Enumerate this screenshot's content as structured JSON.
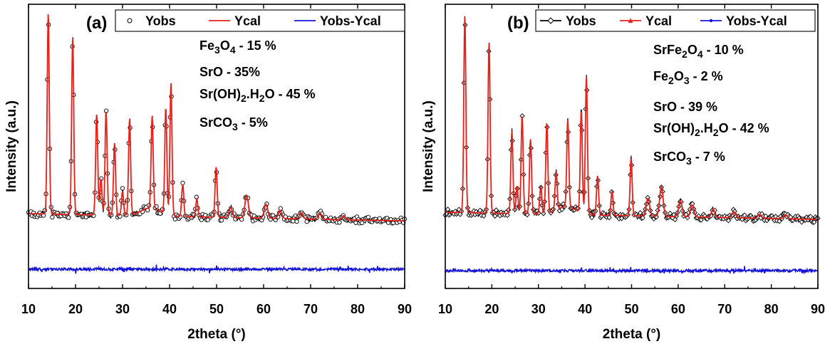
{
  "chart_data": [
    {
      "type": "line",
      "panel_label": "(a)",
      "xlabel": "2theta (°)",
      "ylabel": "Intensity (a.u.)",
      "xlim": [
        10,
        90
      ],
      "xticks": [
        "10",
        "20",
        "30",
        "40",
        "50",
        "60",
        "70",
        "80",
        "90"
      ],
      "legend": {
        "placement": "top-right",
        "entries": [
          {
            "label": "Yobs",
            "color": "#000000",
            "marker": "open-circle"
          },
          {
            "label": "Ycal",
            "color": "#e8201a",
            "marker": "none"
          },
          {
            "label": "Yobs-Ycal",
            "color": "#1414d8",
            "marker": "none"
          }
        ]
      },
      "annotations": [
        {
          "formula": [
            [
              "Fe",
              ""
            ],
            [
              "3",
              "sub"
            ],
            [
              "O",
              ""
            ],
            [
              "4",
              "sub"
            ],
            [
              " - 15 %",
              ""
            ]
          ]
        },
        {
          "formula": [
            [
              "SrO - 35%",
              ""
            ]
          ]
        },
        {
          "formula": [
            [
              "Sr(OH)",
              ""
            ],
            [
              "2",
              "sub"
            ],
            [
              ".H",
              ""
            ],
            [
              "2",
              "sub"
            ],
            [
              "O - 45 %",
              ""
            ]
          ]
        },
        {
          "formula": [
            [
              "SrCO",
              ""
            ],
            [
              "3",
              "sub"
            ],
            [
              " - 5%",
              ""
            ]
          ]
        }
      ],
      "peaks": [
        {
          "x": 14.2,
          "h": 100
        },
        {
          "x": 19.4,
          "h": 88
        },
        {
          "x": 24.5,
          "h": 50
        },
        {
          "x": 25.4,
          "h": 18
        },
        {
          "x": 26.5,
          "h": 52
        },
        {
          "x": 28.3,
          "h": 36
        },
        {
          "x": 30.0,
          "h": 12
        },
        {
          "x": 31.5,
          "h": 48
        },
        {
          "x": 36.3,
          "h": 46
        },
        {
          "x": 39.2,
          "h": 53
        },
        {
          "x": 40.3,
          "h": 66
        },
        {
          "x": 42.8,
          "h": 16
        },
        {
          "x": 45.8,
          "h": 9
        },
        {
          "x": 49.9,
          "h": 25
        },
        {
          "x": 53.0,
          "h": 5
        },
        {
          "x": 56.4,
          "h": 11
        },
        {
          "x": 60.5,
          "h": 7
        },
        {
          "x": 63.5,
          "h": 4
        },
        {
          "x": 68.0,
          "h": 3
        },
        {
          "x": 72.0,
          "h": 3
        },
        {
          "x": 77.0,
          "h": 2
        }
      ]
    },
    {
      "type": "line",
      "panel_label": "(b)",
      "xlabel": "2theta (°)",
      "ylabel": "Intensity (a.u.)",
      "xlim": [
        10,
        90
      ],
      "xticks": [
        "10",
        "20",
        "30",
        "40",
        "50",
        "60",
        "70",
        "80",
        "90"
      ],
      "legend": {
        "placement": "top-right",
        "entries": [
          {
            "label": "Yobs",
            "color": "#000000",
            "marker": "open-diamond"
          },
          {
            "label": "Ycal",
            "color": "#e8201a",
            "marker": "triangle"
          },
          {
            "label": "Yobs-Ycal",
            "color": "#1414d8",
            "marker": "star"
          }
        ]
      },
      "annotations": [
        {
          "formula": [
            [
              "SrFe",
              ""
            ],
            [
              "2",
              "sub"
            ],
            [
              "O",
              ""
            ],
            [
              "4",
              "sub"
            ],
            [
              " - 10 %",
              ""
            ]
          ]
        },
        {
          "formula": [
            [
              "Fe",
              ""
            ],
            [
              "2",
              "sub"
            ],
            [
              "O",
              ""
            ],
            [
              "3",
              "sub"
            ],
            [
              " - 2 %",
              ""
            ]
          ]
        },
        {
          "formula": [
            [
              "SrO - 39 %",
              ""
            ]
          ]
        },
        {
          "formula": [
            [
              "Sr(OH)",
              ""
            ],
            [
              "2",
              "sub"
            ],
            [
              ".H",
              ""
            ],
            [
              "2",
              "sub"
            ],
            [
              "O - 42 %",
              ""
            ]
          ]
        },
        {
          "formula": [
            [
              "SrCO",
              ""
            ],
            [
              "3",
              "sub"
            ],
            [
              " - 7 %",
              ""
            ]
          ]
        }
      ],
      "peaks": [
        {
          "x": 14.2,
          "h": 100
        },
        {
          "x": 19.4,
          "h": 87
        },
        {
          "x": 24.3,
          "h": 42
        },
        {
          "x": 25.4,
          "h": 14
        },
        {
          "x": 26.5,
          "h": 50
        },
        {
          "x": 28.3,
          "h": 38
        },
        {
          "x": 30.5,
          "h": 14
        },
        {
          "x": 31.8,
          "h": 46
        },
        {
          "x": 33.8,
          "h": 20
        },
        {
          "x": 36.3,
          "h": 44
        },
        {
          "x": 39.2,
          "h": 52
        },
        {
          "x": 40.3,
          "h": 70
        },
        {
          "x": 42.7,
          "h": 20
        },
        {
          "x": 45.8,
          "h": 12
        },
        {
          "x": 49.9,
          "h": 29
        },
        {
          "x": 53.5,
          "h": 9
        },
        {
          "x": 56.4,
          "h": 15
        },
        {
          "x": 60.5,
          "h": 8
        },
        {
          "x": 63.0,
          "h": 6
        },
        {
          "x": 67.5,
          "h": 4
        },
        {
          "x": 72.0,
          "h": 3
        },
        {
          "x": 77.5,
          "h": 2
        },
        {
          "x": 83.0,
          "h": 2
        }
      ]
    }
  ]
}
